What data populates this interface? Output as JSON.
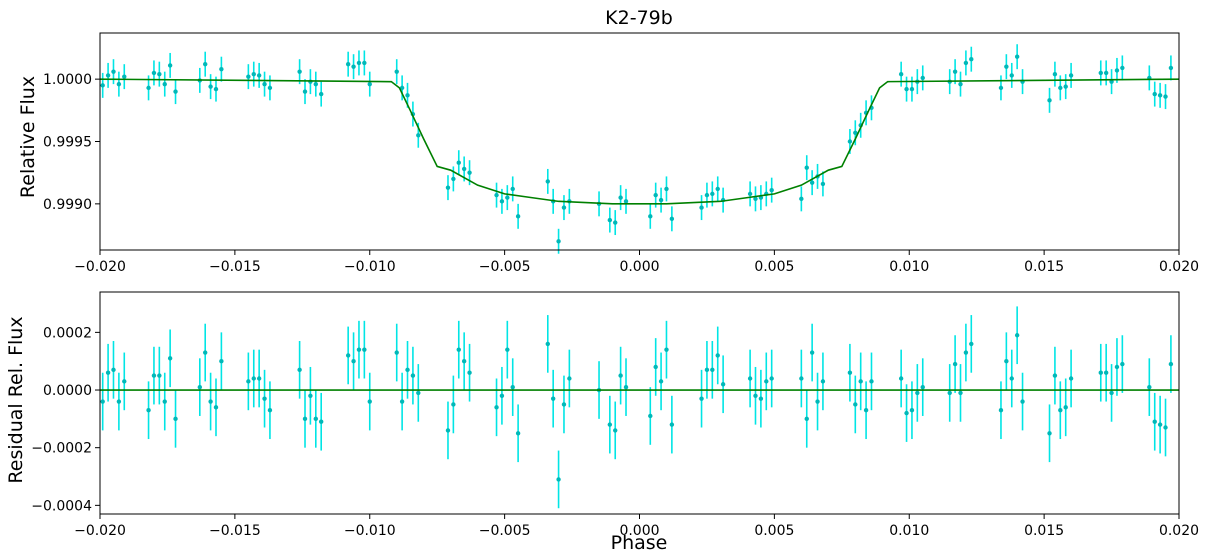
{
  "colors": {
    "points": "#00e5e5",
    "model": "#008000",
    "axes": "#000000"
  },
  "chart_data": [
    {
      "type": "scatter",
      "title": "K2-79b",
      "xlabel": "",
      "ylabel": "Relative Flux",
      "xlim": [
        -0.02,
        0.02
      ],
      "ylim": [
        0.99863,
        1.00037
      ],
      "xticks": [
        -0.02,
        -0.015,
        -0.01,
        -0.005,
        0.0,
        0.005,
        0.01,
        0.015,
        0.02
      ],
      "xtick_labels": [
        "−0.020",
        "−0.015",
        "−0.010",
        "−0.005",
        "0.000",
        "0.005",
        "0.010",
        "0.015",
        "0.020"
      ],
      "yticks": [
        0.999,
        0.9995,
        1.0
      ],
      "ytick_labels": [
        "0.9990",
        "0.9995",
        "1.0000"
      ],
      "grid": false,
      "error_bar": 0.0001,
      "model": {
        "x": [
          -0.02,
          -0.0092,
          -0.0089,
          -0.0085,
          -0.008,
          -0.0075,
          -0.007,
          -0.006,
          -0.005,
          -0.004,
          -0.003,
          -0.002,
          -0.001,
          0.0,
          0.001,
          0.002,
          0.003,
          0.004,
          0.005,
          0.006,
          0.007,
          0.0075,
          0.008,
          0.0085,
          0.0089,
          0.0092,
          0.02
        ],
        "y": [
          1.0,
          0.99998,
          0.99993,
          0.99975,
          0.99952,
          0.9993,
          0.99927,
          0.99915,
          0.99908,
          0.99905,
          0.99902,
          0.99901,
          0.999,
          0.999,
          0.999,
          0.99901,
          0.99902,
          0.99905,
          0.99908,
          0.99915,
          0.99927,
          0.9993,
          0.99952,
          0.99975,
          0.99993,
          0.99998,
          1.0
        ]
      },
      "series": [
        {
          "name": "",
          "x": [
            -0.0199,
            -0.0197,
            -0.0195,
            -0.0193,
            -0.0191,
            -0.0182,
            -0.018,
            -0.0178,
            -0.0176,
            -0.0174,
            -0.0172,
            -0.0163,
            -0.0161,
            -0.0159,
            -0.0157,
            -0.0155,
            -0.0145,
            -0.0143,
            -0.0141,
            -0.0139,
            -0.0137,
            -0.0126,
            -0.0124,
            -0.0122,
            -0.012,
            -0.0118,
            -0.0108,
            -0.0106,
            -0.0104,
            -0.0102,
            -0.01,
            -0.009,
            -0.0088,
            -0.0086,
            -0.0084,
            -0.0082,
            -0.0071,
            -0.0069,
            -0.0067,
            -0.0065,
            -0.0063,
            -0.0053,
            -0.0051,
            -0.0049,
            -0.0047,
            -0.0045,
            -0.0034,
            -0.0032,
            -0.003,
            -0.0028,
            -0.0026,
            -0.0015,
            -0.0011,
            -0.0009,
            -0.0007,
            -0.0005,
            0.0004,
            0.0006,
            0.0008,
            0.001,
            0.0012,
            0.0023,
            0.0025,
            0.0027,
            0.0029,
            0.0031,
            0.0041,
            0.0043,
            0.0045,
            0.0047,
            0.0049,
            0.006,
            0.0062,
            0.0064,
            0.0066,
            0.0068,
            0.0078,
            0.008,
            0.0082,
            0.0084,
            0.0086,
            0.0097,
            0.0099,
            0.0101,
            0.0103,
            0.0105,
            0.0115,
            0.0117,
            0.0119,
            0.0121,
            0.0123,
            0.0134,
            0.0136,
            0.0138,
            0.014,
            0.0142,
            0.0152,
            0.0154,
            0.0156,
            0.0158,
            0.016,
            0.0171,
            0.0173,
            0.0175,
            0.0177,
            0.0179,
            0.0189,
            0.0191,
            0.0193,
            0.0195,
            0.0197
          ],
          "y": [
            0.99995,
            1.00003,
            1.00006,
            0.99996,
            1.00002,
            0.99993,
            1.00005,
            1.00004,
            0.99996,
            1.00011,
            0.9999,
            0.99999,
            1.00012,
            0.99994,
            0.99992,
            1.00008,
            1.00002,
            1.00004,
            1.00003,
            0.99996,
            0.99993,
            1.00006,
            0.9999,
            0.99998,
            0.99996,
            0.99988,
            1.00012,
            1.0001,
            1.00013,
            1.00013,
            0.99996,
            1.00006,
            0.99993,
            0.99987,
            0.99972,
            0.99955,
            0.99913,
            0.9992,
            0.99933,
            0.99928,
            0.99925,
            0.99907,
            0.99902,
            0.99905,
            0.99912,
            0.9989,
            0.99918,
            0.99902,
            0.9987,
            0.99897,
            0.99902,
            0.999,
            0.99887,
            0.99885,
            0.99905,
            0.99902,
            0.9989,
            0.99907,
            0.99903,
            0.99912,
            0.99888,
            0.99897,
            0.99907,
            0.99908,
            0.99912,
            0.99903,
            0.99908,
            0.99904,
            0.99905,
            0.99908,
            0.99911,
            0.99904,
            0.99929,
            0.99917,
            0.99922,
            0.99916,
            0.9995,
            0.99957,
            0.99963,
            0.99973,
            0.99977,
            1.00004,
            0.99992,
            0.99992,
            0.99998,
            1.00001,
            0.99998,
            1.00006,
            0.99996,
            1.00013,
            1.00016,
            0.99993,
            1.0001,
            1.00003,
            1.00018,
            0.99998,
            0.99983,
            1.00004,
            0.99993,
            0.99994,
            1.00003,
            1.00005,
            1.00005,
            0.99998,
            1.00007,
            1.00009,
            1.00001,
            0.99988,
            0.99987,
            0.99986,
            1.00009
          ]
        }
      ]
    },
    {
      "type": "scatter",
      "title": "",
      "xlabel": "Phase",
      "ylabel": "Residual Rel. Flux",
      "xlim": [
        -0.02,
        0.02
      ],
      "ylim": [
        -0.00043,
        0.00034
      ],
      "xticks": [
        -0.02,
        -0.015,
        -0.01,
        -0.005,
        0.0,
        0.005,
        0.01,
        0.015,
        0.02
      ],
      "xtick_labels": [
        "−0.020",
        "−0.015",
        "−0.010",
        "−0.005",
        "0.000",
        "0.005",
        "0.010",
        "0.015",
        "0.020"
      ],
      "yticks": [
        -0.0004,
        -0.0002,
        0.0,
        0.0002
      ],
      "ytick_labels": [
        "−0.0004",
        "−0.0002",
        "0.0000",
        "0.0002"
      ],
      "grid": false,
      "error_bar": 0.0001,
      "model": {
        "x": [
          -0.02,
          0.02
        ],
        "y": [
          0.0,
          0.0
        ]
      },
      "series": [
        {
          "name": "",
          "x": [
            -0.0199,
            -0.0197,
            -0.0195,
            -0.0193,
            -0.0191,
            -0.0182,
            -0.018,
            -0.0178,
            -0.0176,
            -0.0174,
            -0.0172,
            -0.0163,
            -0.0161,
            -0.0159,
            -0.0157,
            -0.0155,
            -0.0145,
            -0.0143,
            -0.0141,
            -0.0139,
            -0.0137,
            -0.0126,
            -0.0124,
            -0.0122,
            -0.012,
            -0.0118,
            -0.0108,
            -0.0106,
            -0.0104,
            -0.0102,
            -0.01,
            -0.009,
            -0.0088,
            -0.0086,
            -0.0084,
            -0.0082,
            -0.0071,
            -0.0069,
            -0.0067,
            -0.0065,
            -0.0063,
            -0.0053,
            -0.0051,
            -0.0049,
            -0.0047,
            -0.0045,
            -0.0034,
            -0.0032,
            -0.003,
            -0.0028,
            -0.0026,
            -0.0015,
            -0.0011,
            -0.0009,
            -0.0007,
            -0.0005,
            0.0004,
            0.0006,
            0.0008,
            0.001,
            0.0012,
            0.0023,
            0.0025,
            0.0027,
            0.0029,
            0.0031,
            0.0041,
            0.0043,
            0.0045,
            0.0047,
            0.0049,
            0.006,
            0.0062,
            0.0064,
            0.0066,
            0.0068,
            0.0078,
            0.008,
            0.0082,
            0.0084,
            0.0086,
            0.0097,
            0.0099,
            0.0101,
            0.0103,
            0.0105,
            0.0115,
            0.0117,
            0.0119,
            0.0121,
            0.0123,
            0.0134,
            0.0136,
            0.0138,
            0.014,
            0.0142,
            0.0152,
            0.0154,
            0.0156,
            0.0158,
            0.016,
            0.0171,
            0.0173,
            0.0175,
            0.0177,
            0.0179,
            0.0189,
            0.0191,
            0.0193,
            0.0195,
            0.0197
          ],
          "y": [
            -4e-05,
            6e-05,
            7e-05,
            -4e-05,
            3e-05,
            -7e-05,
            5e-05,
            5e-05,
            -4e-05,
            0.00011,
            -0.0001,
            1e-05,
            0.00013,
            -4e-05,
            -6e-05,
            0.0001,
            3e-05,
            4e-05,
            4e-05,
            -3e-05,
            -7e-05,
            7e-05,
            -0.0001,
            -2e-05,
            -0.0001,
            -0.00011,
            0.00012,
            0.0001,
            0.00014,
            0.00014,
            -4e-05,
            0.00013,
            -4e-05,
            7e-05,
            5e-05,
            -1e-05,
            -0.00014,
            -5e-05,
            0.00014,
            0.0001,
            6e-05,
            -6e-05,
            -2e-05,
            0.00014,
            1e-05,
            -0.00015,
            0.00016,
            -3e-05,
            -0.00031,
            -5e-05,
            4e-05,
            0.0,
            -0.00012,
            -0.00014,
            5e-05,
            1e-05,
            -9e-05,
            8e-05,
            3e-05,
            0.00014,
            -0.00012,
            -3e-05,
            7e-05,
            7e-05,
            0.00012,
            2e-05,
            4e-05,
            -2e-05,
            -3e-05,
            3e-05,
            4e-05,
            4e-05,
            -0.0001,
            0.00013,
            -4e-05,
            3e-05,
            6e-05,
            -5e-05,
            3e-05,
            -7e-05,
            3e-05,
            4e-05,
            -8e-05,
            -7e-05,
            -1e-05,
            1e-05,
            -1e-05,
            9e-05,
            -1e-05,
            0.00013,
            0.00016,
            -7e-05,
            0.0001,
            4e-05,
            0.00019,
            -4e-05,
            -0.00015,
            5e-05,
            -7e-05,
            -6e-05,
            4e-05,
            6e-05,
            6e-05,
            -1e-05,
            8e-05,
            9e-05,
            1e-05,
            -0.00011,
            -0.00012,
            -0.00013,
            9e-05
          ]
        }
      ]
    }
  ]
}
